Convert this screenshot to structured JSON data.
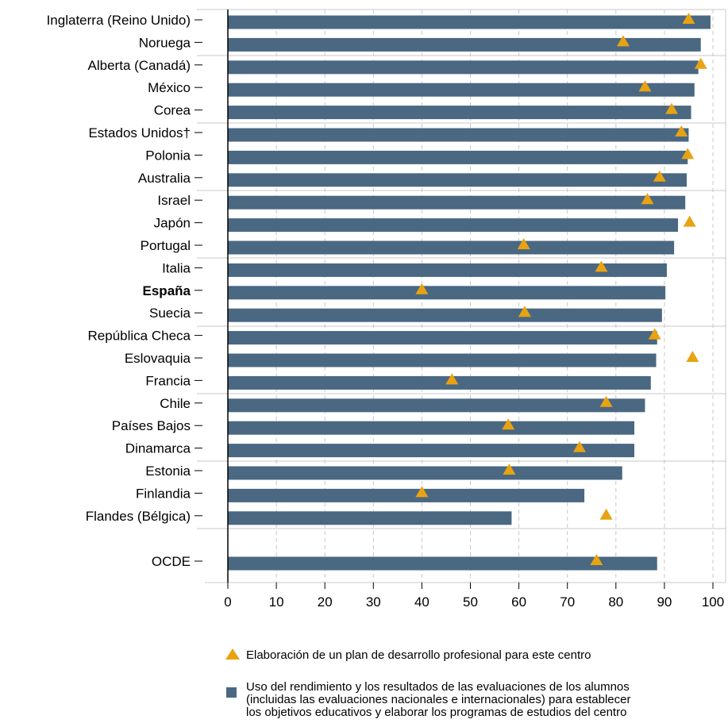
{
  "chart_data": {
    "type": "bar",
    "xlim": [
      0,
      100
    ],
    "xticks": [
      0,
      10,
      20,
      30,
      40,
      50,
      60,
      70,
      80,
      90,
      100
    ],
    "grid": "vertical dashed",
    "colors": {
      "bar": "#4a6882",
      "triangle": "#e8a312",
      "grey_label": "#9a9a9a"
    },
    "categories": [
      {
        "label": "Inglaterra (Reino Unido)",
        "bar": 99.5,
        "tri": 95.0,
        "style": "normal"
      },
      {
        "label": "Noruega",
        "bar": 97.5,
        "tri": 81.5,
        "style": "normal"
      },
      {
        "label": "Alberta (Canadá)",
        "bar": 97.0,
        "tri": 97.5,
        "style": "normal"
      },
      {
        "label": "México",
        "bar": 96.2,
        "tri": 86.0,
        "style": "normal"
      },
      {
        "label": "Corea",
        "bar": 95.5,
        "tri": 91.5,
        "style": "normal"
      },
      {
        "label": "Estados Unidos†",
        "bar": 95.0,
        "tri": 93.5,
        "style": "grey"
      },
      {
        "label": "Polonia",
        "bar": 94.8,
        "tri": 94.8,
        "style": "normal"
      },
      {
        "label": "Australia",
        "bar": 94.6,
        "tri": 89.0,
        "style": "normal"
      },
      {
        "label": "Israel",
        "bar": 94.3,
        "tri": 86.5,
        "style": "normal"
      },
      {
        "label": "Japón",
        "bar": 92.8,
        "tri": 95.2,
        "style": "normal"
      },
      {
        "label": "Portugal",
        "bar": 92.0,
        "tri": 61.0,
        "style": "normal"
      },
      {
        "label": "Italia",
        "bar": 90.5,
        "tri": 77.0,
        "style": "normal"
      },
      {
        "label": "España",
        "bar": 90.2,
        "tri": 40.0,
        "style": "bold"
      },
      {
        "label": "Suecia",
        "bar": 89.5,
        "tri": 61.2,
        "style": "normal"
      },
      {
        "label": "República Checa",
        "bar": 88.5,
        "tri": 88.0,
        "style": "normal"
      },
      {
        "label": "Eslovaquia",
        "bar": 88.3,
        "tri": 95.8,
        "style": "normal"
      },
      {
        "label": "Francia",
        "bar": 87.2,
        "tri": 46.2,
        "style": "normal"
      },
      {
        "label": "Chile",
        "bar": 86.0,
        "tri": 78.0,
        "style": "normal"
      },
      {
        "label": "Países Bajos",
        "bar": 83.8,
        "tri": 57.8,
        "style": "normal"
      },
      {
        "label": "Dinamarca",
        "bar": 83.8,
        "tri": 72.5,
        "style": "normal"
      },
      {
        "label": "Estonia",
        "bar": 81.3,
        "tri": 58.0,
        "style": "normal"
      },
      {
        "label": "Finlandia",
        "bar": 73.5,
        "tri": 40.0,
        "style": "normal"
      },
      {
        "label": "Flandes (Bélgica)",
        "bar": 58.5,
        "tri": 78.0,
        "style": "normal"
      },
      {
        "label": "OCDE",
        "bar": 88.5,
        "tri": 76.0,
        "style": "normal"
      }
    ],
    "legend": [
      {
        "marker": "triangle",
        "text": "Elaboración de un plan de desarrollo profesional para este centro"
      },
      {
        "marker": "square",
        "lines": [
          "Uso del rendimiento y los resultados de las evaluaciones de los alumnos",
          "(incluidas las evaluaciones nacionales e internacionales) para establecer",
          "los objetivos educativos y elaborar los programas de estudios del centro"
        ]
      }
    ]
  }
}
